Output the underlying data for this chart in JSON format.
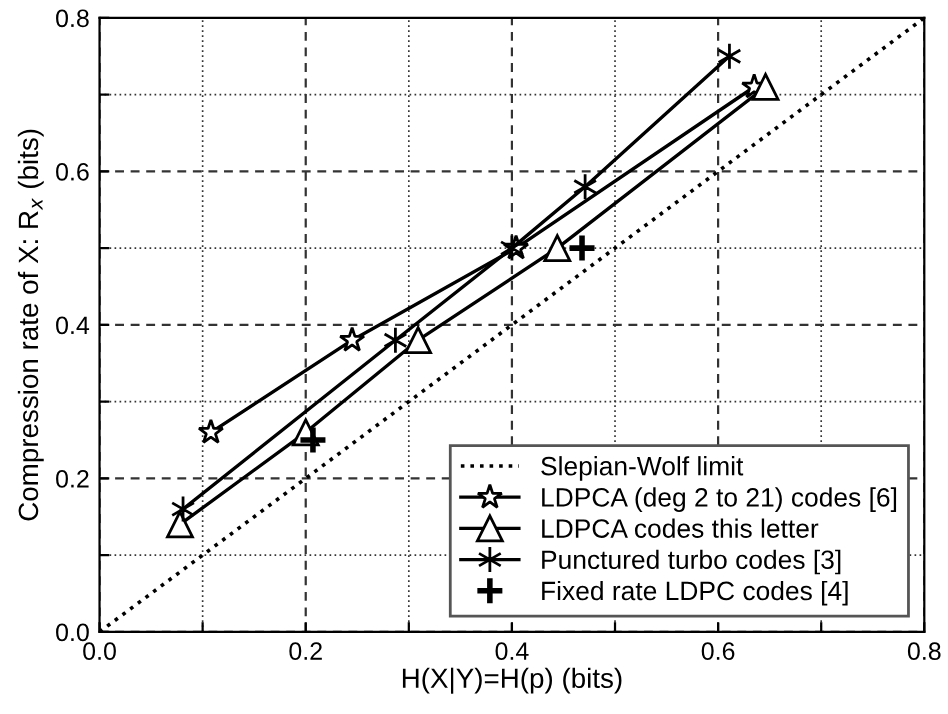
{
  "chart_data": {
    "type": "line",
    "xlabel": "H(X|Y)=H(p) (bits)",
    "ylabel": "Compression rate of X: R$_{x}$ (bits)",
    "xlim": [
      0,
      0.8
    ],
    "ylim": [
      0,
      0.8
    ],
    "xticks": [
      {
        "value": 0,
        "label": "0.0"
      },
      {
        "value": 0.1,
        "label": null
      },
      {
        "value": 0.2,
        "label": "0.2"
      },
      {
        "value": 0.3,
        "label": null
      },
      {
        "value": 0.4,
        "label": "0.4"
      },
      {
        "value": 0.5,
        "label": null
      },
      {
        "value": 0.6,
        "label": "0.6"
      },
      {
        "value": 0.7,
        "label": null
      },
      {
        "value": 0.8,
        "label": "0.8"
      }
    ],
    "yticks": [
      {
        "value": 0,
        "label": "0.0"
      },
      {
        "value": 0.1,
        "label": null
      },
      {
        "value": 0.2,
        "label": "0.2"
      },
      {
        "value": 0.3,
        "label": null
      },
      {
        "value": 0.4,
        "label": "0.4"
      },
      {
        "value": 0.5,
        "label": null
      },
      {
        "value": 0.6,
        "label": "0.6"
      },
      {
        "value": 0.7,
        "label": null
      },
      {
        "value": 0.8,
        "label": "0.8"
      }
    ],
    "grid": true,
    "legend": "bottom right",
    "series": [
      {
        "name": "Slepian-Wolf limit",
        "color": "#000000",
        "x": [
          0,
          0.8
        ],
        "values": [
          0,
          0.8
        ],
        "marker": "none",
        "line_style": "dotted"
      },
      {
        "name": "LDPCA (deg 2 to 21) codes [6]",
        "color": "#000000",
        "x": [
          0.108,
          0.245,
          0.404,
          0.635
        ],
        "values": [
          0.26,
          0.38,
          0.5,
          0.71
        ],
        "marker": "star",
        "line_style": "solid"
      },
      {
        "name": "LDPCA codes this letter",
        "color": "#000000",
        "x": [
          0.078,
          0.2,
          0.309,
          0.444,
          0.646
        ],
        "values": [
          0.14,
          0.26,
          0.38,
          0.5,
          0.71
        ],
        "marker": "triangle",
        "line_style": "solid"
      },
      {
        "name": "Punctured turbo codes [3]",
        "color": "#000000",
        "x": [
          0.081,
          0.287,
          0.4,
          0.471,
          0.611
        ],
        "values": [
          0.16,
          0.38,
          0.5,
          0.58,
          0.75
        ],
        "marker": "cross",
        "line_style": "solid"
      },
      {
        "name": "Fixed rate LDPC codes [4]",
        "type": "scatter",
        "color": "#000000",
        "x": [
          0.207,
          0.468
        ],
        "values": [
          0.25,
          0.5
        ],
        "marker": "cross"
      }
    ]
  }
}
